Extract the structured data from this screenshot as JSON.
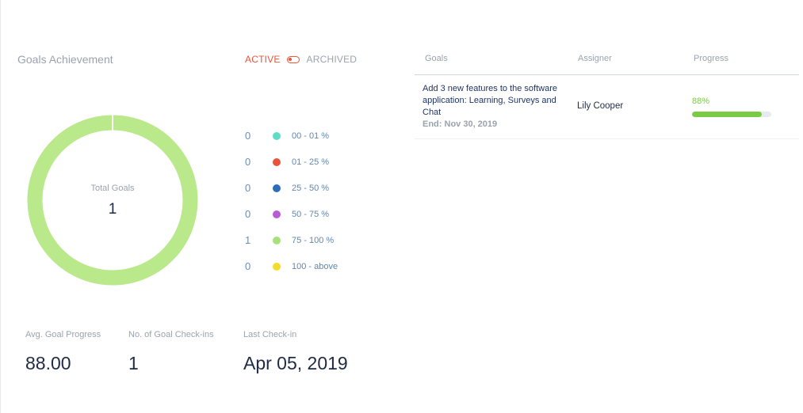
{
  "section_title": "Goals Achievement",
  "toggle": {
    "active_label": "ACTIVE",
    "archived_label": "ARCHIVED"
  },
  "donut": {
    "center_label": "Total Goals",
    "center_value": "1",
    "color": "#b9e98a",
    "gap_color": "#ffffff"
  },
  "legend": [
    {
      "count": "0",
      "label": "00 - 01 %",
      "color": "#5fdcc5"
    },
    {
      "count": "0",
      "label": "01 - 25 %",
      "color": "#e8553b"
    },
    {
      "count": "0",
      "label": "25 - 50 %",
      "color": "#2a6fb8"
    },
    {
      "count": "0",
      "label": "50 - 75 %",
      "color": "#b85bd6"
    },
    {
      "count": "1",
      "label": "75 - 100 %",
      "color": "#a8e07a"
    },
    {
      "count": "0",
      "label": "100 - above",
      "color": "#f4dc2a"
    }
  ],
  "stats": [
    {
      "label": "Avg. Goal Progress",
      "value": "88.00"
    },
    {
      "label": "No. of Goal Check-ins",
      "value": "1"
    },
    {
      "label": "Last Check-in",
      "value": "Apr 05, 2019"
    }
  ],
  "table": {
    "headers": {
      "goals": "Goals",
      "assigner": "Assigner",
      "progress": "Progress"
    },
    "rows": [
      {
        "goal": "Add 3 new features to the software application: Learning, Surveys and Chat",
        "end": "End: Nov 30, 2019",
        "assigner": "Lily Cooper",
        "progress_label": "88%",
        "progress": 0.88
      }
    ]
  }
}
